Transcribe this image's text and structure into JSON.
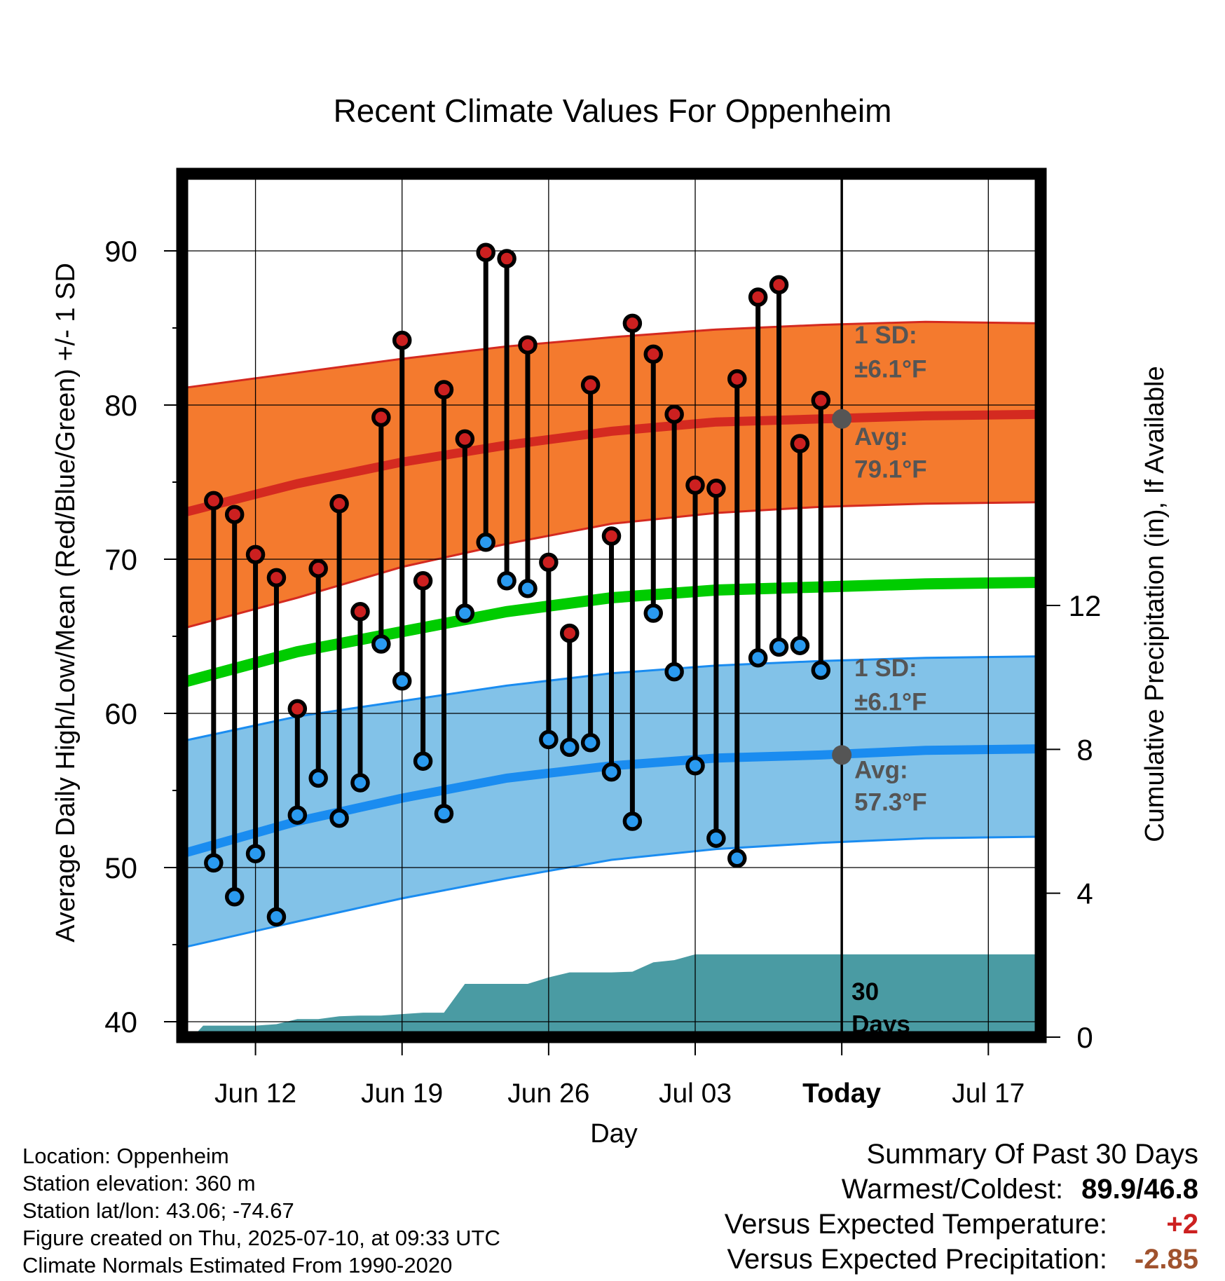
{
  "title": "Recent Climate Values For Oppenheim",
  "chart_data": {
    "type": "line",
    "title": "Recent Climate Values For Oppenheim",
    "xlabel": "Day",
    "ylabel_left": "Average Daily High/Low/Mean (Red/Blue/Green) +/- 1 SD",
    "ylabel_right": "Cumulative Precipitation (in), If Available",
    "x_tick_labels": [
      "Jun 12",
      "Jun 19",
      "Jun 26",
      "Jul 03",
      "Today",
      "Jul 17"
    ],
    "x_ticks_day_of_year": [
      163,
      170,
      177,
      184,
      191,
      198
    ],
    "xlim": [
      159.5,
      200.5
    ],
    "ylim_left": [
      39,
      95
    ],
    "y_ticks_left": [
      40,
      50,
      60,
      70,
      80,
      90
    ],
    "ylim_right": [
      0,
      24
    ],
    "y_ticks_right": [
      0,
      4,
      8,
      12
    ],
    "grid": true,
    "today_day_of_year": 191,
    "normals": {
      "x": [
        159.5,
        165,
        170,
        175,
        180,
        185,
        190,
        195,
        200.5
      ],
      "high_avg": [
        73.0,
        74.9,
        76.3,
        77.4,
        78.3,
        78.9,
        79.1,
        79.3,
        79.4
      ],
      "high_upper": [
        81.1,
        82.1,
        83.0,
        83.8,
        84.4,
        84.9,
        85.2,
        85.4,
        85.3
      ],
      "high_lower": [
        65.5,
        67.5,
        69.5,
        71.0,
        72.3,
        73.0,
        73.4,
        73.6,
        73.7
      ],
      "low_avg": [
        50.9,
        53.0,
        54.5,
        55.8,
        56.6,
        57.1,
        57.3,
        57.6,
        57.7
      ],
      "low_upper": [
        58.2,
        59.8,
        60.8,
        61.8,
        62.6,
        63.1,
        63.4,
        63.6,
        63.7
      ],
      "low_lower": [
        44.8,
        46.5,
        48.0,
        49.3,
        50.5,
        51.2,
        51.6,
        51.9,
        52.0
      ],
      "mean_avg": [
        62.0,
        64.0,
        65.3,
        66.6,
        67.5,
        68.0,
        68.2,
        68.4,
        68.5
      ]
    },
    "annotations": {
      "high_sd": "1 SD:",
      "high_sd_value": "±6.1°F",
      "high_avg_label": "Avg:",
      "high_avg_value": "79.1°F",
      "low_sd": "1 SD:",
      "low_sd_value": "±6.1°F",
      "low_avg_label": "Avg:",
      "low_avg_value": "57.3°F",
      "precip_period_number": "30",
      "precip_period_unit": "Days"
    },
    "series": [
      {
        "name": "High",
        "x": [
          161,
          162,
          163,
          164,
          165,
          166,
          167,
          168,
          169,
          170,
          171,
          172,
          173,
          174,
          175,
          176,
          177,
          178,
          179,
          180,
          181,
          182,
          183,
          184,
          185,
          186,
          187,
          188,
          189,
          190
        ],
        "values": [
          73.8,
          72.9,
          70.3,
          68.8,
          60.3,
          69.4,
          73.6,
          66.6,
          79.2,
          84.2,
          68.6,
          81.0,
          77.8,
          89.9,
          89.5,
          83.9,
          69.8,
          65.2,
          81.3,
          71.5,
          85.3,
          83.3,
          79.4,
          74.8,
          74.6,
          81.7,
          87.0,
          87.8,
          77.5,
          80.3
        ]
      },
      {
        "name": "Low",
        "x": [
          161,
          162,
          163,
          164,
          165,
          166,
          167,
          168,
          169,
          170,
          171,
          172,
          173,
          174,
          175,
          176,
          177,
          178,
          179,
          180,
          181,
          182,
          183,
          184,
          185,
          186,
          187,
          188,
          189,
          190
        ],
        "values": [
          50.3,
          48.1,
          50.9,
          46.8,
          53.4,
          55.8,
          53.2,
          55.5,
          64.5,
          62.1,
          56.9,
          53.5,
          66.5,
          71.1,
          68.6,
          68.1,
          58.3,
          57.8,
          58.1,
          56.2,
          53.0,
          66.5,
          62.7,
          56.6,
          51.9,
          50.6,
          63.6,
          64.3,
          64.4,
          62.8
        ]
      },
      {
        "name": "Cumulative Precipitation",
        "x": [
          160,
          160.5,
          163,
          164,
          165,
          166,
          167,
          168,
          169,
          170,
          171,
          172,
          173,
          174,
          175,
          176,
          177,
          178,
          179,
          180,
          181,
          182,
          183,
          184,
          185,
          186,
          187,
          188,
          189,
          190,
          191,
          200.5
        ],
        "values": [
          0,
          0.32,
          0.32,
          0.36,
          0.5,
          0.5,
          0.58,
          0.6,
          0.6,
          0.64,
          0.68,
          0.68,
          1.48,
          1.48,
          1.48,
          1.48,
          1.66,
          1.8,
          1.8,
          1.8,
          1.82,
          2.08,
          2.14,
          2.3,
          2.3,
          2.3,
          2.3,
          2.3,
          2.3,
          2.3,
          2.3,
          2.3
        ]
      }
    ]
  },
  "footer": {
    "location": "Location: Oppenheim",
    "elevation": "Station elevation: 360 m",
    "latlon": "Station lat/lon: 43.06; -74.67",
    "created": "Figure created on Thu, 2025-07-10, at 09:33 UTC",
    "normals": "Climate Normals Estimated From 1990-2020"
  },
  "summary": {
    "title": "Summary Of Past 30 Days",
    "warmest_coldest_label": "Warmest/Coldest:",
    "warmest": "89.9",
    "slash": "/",
    "coldest": "46.8",
    "temp_label": "Versus Expected Temperature:",
    "temp_value": "+2",
    "precip_label": "Versus Expected Precipitation:",
    "precip_value": "-2.85"
  },
  "colors": {
    "high_band": "#f47a2e",
    "high_avg": "#d42a20",
    "low_band": "#82c2e8",
    "low_avg": "#1a8cf0",
    "mean": "#00cc00",
    "precip": "#4a9ba3",
    "high_dot": "#cc2020",
    "low_dot": "#2a9af0",
    "annotation": "#555555",
    "temp_value": "#cc2020",
    "precip_value": "#a0522d"
  }
}
